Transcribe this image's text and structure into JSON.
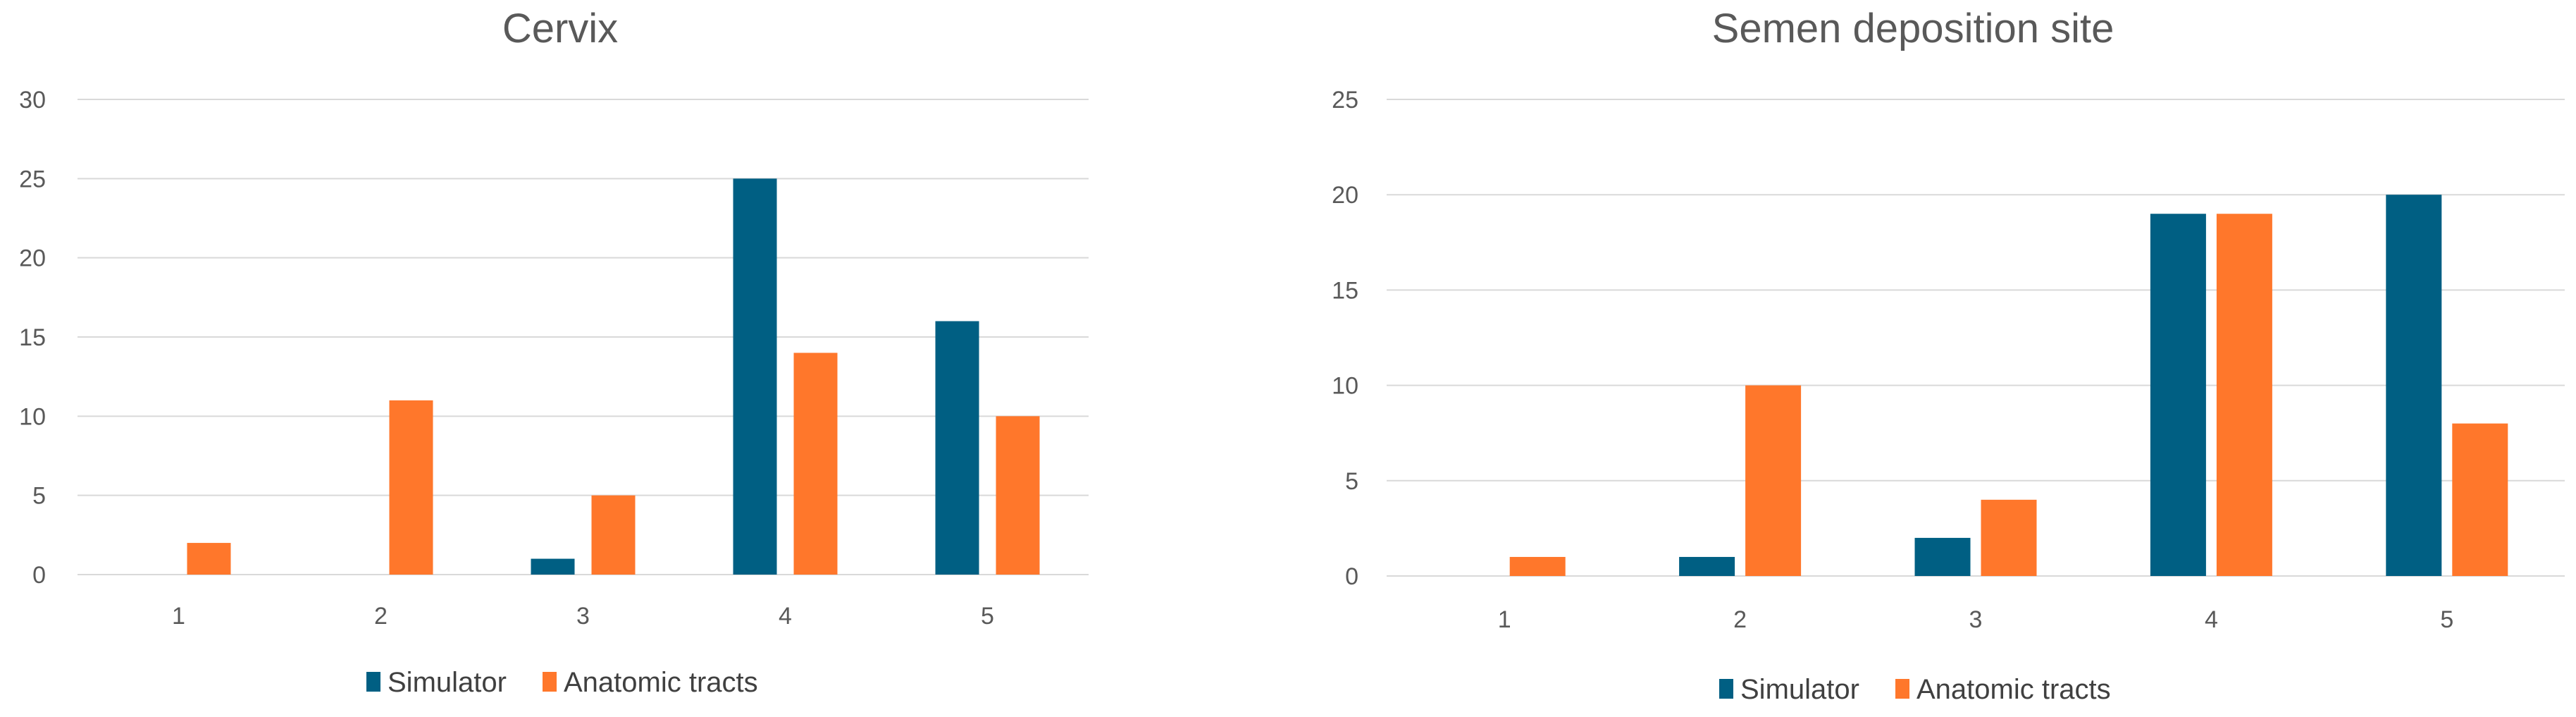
{
  "chart_data": [
    {
      "type": "bar",
      "title": "Cervix",
      "xlabel": "",
      "ylabel": "",
      "categories": [
        "1",
        "2",
        "3",
        "4",
        "5"
      ],
      "series": [
        {
          "name": "Simulator",
          "values": [
            0,
            0,
            1,
            25,
            16
          ]
        },
        {
          "name": "Anatomic tracts",
          "values": [
            2,
            11,
            5,
            14,
            10
          ]
        }
      ],
      "ylim": [
        0,
        30
      ],
      "yticks": [
        0,
        5,
        10,
        15,
        20,
        25,
        30
      ],
      "grid": true,
      "legend_position": "bottom"
    },
    {
      "type": "bar",
      "title": "Semen deposition site",
      "xlabel": "",
      "ylabel": "",
      "categories": [
        "1",
        "2",
        "3",
        "4",
        "5"
      ],
      "series": [
        {
          "name": "Simulator",
          "values": [
            0,
            1,
            2,
            19,
            20
          ]
        },
        {
          "name": "Anatomic tracts",
          "values": [
            1,
            10,
            4,
            19,
            8
          ]
        }
      ],
      "ylim": [
        0,
        25
      ],
      "yticks": [
        0,
        5,
        10,
        15,
        20,
        25
      ],
      "grid": true,
      "legend_position": "bottom"
    }
  ],
  "colors": {
    "Simulator": "#005f83",
    "Anatomic tracts": "#ff772b"
  }
}
